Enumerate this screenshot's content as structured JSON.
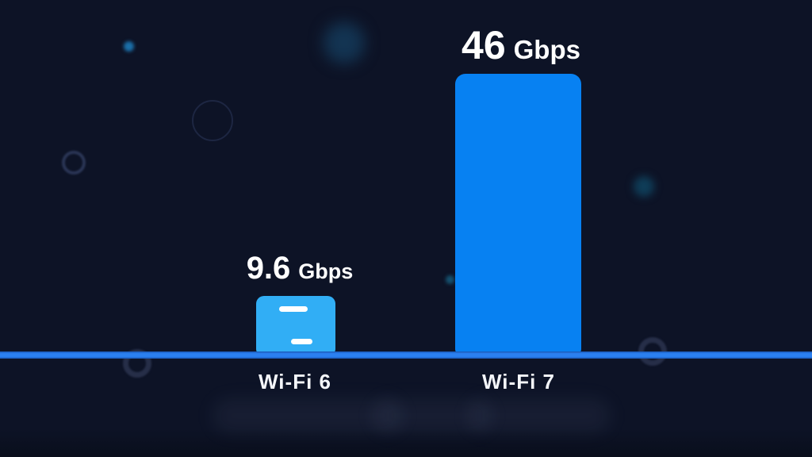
{
  "chart_data": {
    "type": "bar",
    "categories": [
      "Wi-Fi 6",
      "Wi-Fi 7"
    ],
    "values": [
      9.6,
      46
    ],
    "unit": "Gbps",
    "value_labels": [
      "9.6 Gbps",
      "46 Gbps"
    ],
    "title": "",
    "xlabel": "",
    "ylabel": "",
    "legend": false,
    "grid": false,
    "ylim": [
      0,
      46
    ],
    "background_color": "#0d1326",
    "bar_colors": [
      "#31aef5",
      "#0781f2"
    ],
    "baseline_color": "#2b80f0",
    "label_color": "#ffffff"
  },
  "bars": [
    {
      "value_num": "9.6",
      "value_unit": "Gbps",
      "category": "Wi-Fi 6"
    },
    {
      "value_num": "46",
      "value_unit": "Gbps",
      "category": "Wi-Fi 7"
    }
  ]
}
